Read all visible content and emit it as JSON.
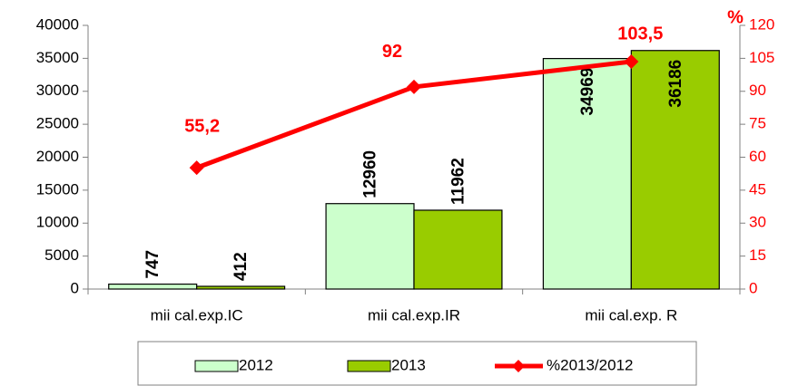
{
  "chart_data": {
    "type": "bar",
    "categories": [
      "mii cal.exp.IC",
      "mii cal.exp.IR",
      "mii cal.exp. R"
    ],
    "series": [
      {
        "name": "2012",
        "color": "#ccffcc",
        "values": [
          747,
          12960,
          34969
        ]
      },
      {
        "name": "2013",
        "color": "#99cc00",
        "values": [
          412,
          11962,
          36186
        ]
      },
      {
        "name": "%2013/2012",
        "color": "#ff0000",
        "type": "line",
        "axis": "y2",
        "values": [
          55.2,
          92,
          103.5
        ],
        "value_labels": [
          "55,2",
          "92",
          "103,5"
        ]
      }
    ],
    "ylim": [
      0,
      40000
    ],
    "yticks": [
      0,
      5000,
      10000,
      15000,
      20000,
      25000,
      30000,
      35000,
      40000
    ],
    "y2label": "%",
    "y2lim": [
      0,
      120
    ],
    "y2ticks": [
      0,
      15,
      30,
      45,
      60,
      75,
      90,
      105,
      120
    ],
    "grid": false,
    "legend": "bottom"
  }
}
